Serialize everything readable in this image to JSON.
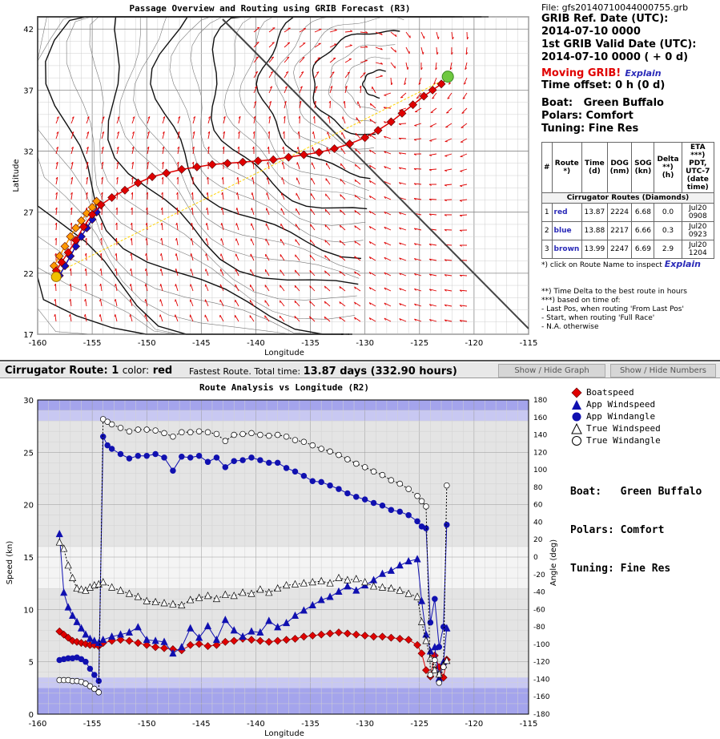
{
  "top_chart": {
    "title": "Passage Overview and Routing using GRIB Forecast (R3)",
    "xlabel": "Longitude",
    "ylabel": "Latitude",
    "x_ticks": [
      "-160",
      "-155",
      "-150",
      "-145",
      "-140",
      "-135",
      "-130",
      "-125",
      "-120",
      "-115"
    ],
    "y_ticks": [
      "42",
      "37",
      "32",
      "27",
      "22",
      "17"
    ]
  },
  "info": {
    "file": "File: gfs20140710044000755.grb",
    "grib_ref_label": "GRIB Ref. Date (UTC):",
    "grib_ref_value": "2014-07-10 0000",
    "first_valid_label": "1st GRIB Valid Date (UTC):",
    "first_valid_value": "2014-07-10 0000 ( + 0 d)",
    "moving": "Moving GRIB!",
    "explain": "Explain",
    "time_offset": "Time offset: 0 h (0 d)",
    "boat": "Boat:   Green Buffalo",
    "polars": "Polars: Comfort",
    "tuning": "Tuning: Fine Res"
  },
  "routes_table": {
    "headers": [
      "#",
      "Route *)",
      "Time (d)",
      "DOG (nm)",
      "SOG (kn)",
      "Delta **) (h)",
      "ETA ***) PDT, UTC-7 (date time)"
    ],
    "subheader": "Cirrugator Routes (Diamonds)",
    "rows": [
      {
        "num": "1",
        "route": "red",
        "color": "#2a2ab8",
        "time": "13.87",
        "dog": "2224",
        "sog": "6.68",
        "delta": "0.0",
        "eta": "Jul20 0908"
      },
      {
        "num": "2",
        "route": "blue",
        "color": "#2a2ab8",
        "time": "13.88",
        "dog": "2217",
        "sog": "6.66",
        "delta": "0.3",
        "eta": "Jul20 0923"
      },
      {
        "num": "3",
        "route": "brown",
        "color": "#2a2ab8",
        "time": "13.99",
        "dog": "2247",
        "sog": "6.69",
        "delta": "2.9",
        "eta": "Jul20 1204"
      }
    ],
    "click_note": "*) click on Route Name to inspect",
    "explain": "Explain"
  },
  "notes": [
    "**) Time Delta to the best route in hours",
    "***) based on time of:",
    "- Last Pos, when routing 'From Last Pos'",
    "- Start, when routing 'Full Race'",
    "- N.A. otherwise"
  ],
  "route_bar": {
    "label": "Cirrugator Route:",
    "num": "1",
    "color_label": "color:",
    "color": "red",
    "fastest": "Fastest Route. Total time:",
    "total": "13.87 days (332.90 hours)",
    "btn_graph": "Show / Hide Graph",
    "btn_numbers": "Show / Hide Numbers"
  },
  "legend": [
    {
      "label": "Boatspeed",
      "shape": "diamond",
      "color": "#e00000"
    },
    {
      "label": "App Windspeed",
      "shape": "triangle",
      "color": "#1010b0"
    },
    {
      "label": "App Windangle",
      "shape": "circle",
      "color": "#1010b0"
    },
    {
      "label": "True Windspeed",
      "shape": "triangle-open",
      "color": "#ffffff"
    },
    {
      "label": "True Windangle",
      "shape": "circle-open",
      "color": "#ffffff"
    }
  ],
  "boat_info": {
    "boat": "Boat:   Green Buffalo",
    "polars": "Polars: Comfort",
    "tuning": "Tuning: Fine Res"
  },
  "chart_data": [
    {
      "type": "scatter",
      "title": "Passage Overview and Routing using GRIB Forecast (R3)",
      "xlabel": "Longitude",
      "ylabel": "Latitude",
      "xlim": [
        -160,
        -115
      ],
      "ylim": [
        17,
        43
      ],
      "series": [
        {
          "name": "red",
          "color": "#e00000",
          "x": [
            -158.3,
            -157.8,
            -157.2,
            -156.5,
            -155.8,
            -155.0,
            -154.2,
            -153.2,
            -152.0,
            -150.8,
            -149.5,
            -148.2,
            -146.8,
            -145.4,
            -144.0,
            -142.6,
            -141.2,
            -139.8,
            -138.4,
            -137.0,
            -135.6,
            -134.2,
            -132.8,
            -131.4,
            -130.0,
            -128.8,
            -127.6,
            -126.6,
            -125.6,
            -124.6,
            -123.8,
            -123.0,
            -122.4
          ],
          "y": [
            22.2,
            22.9,
            23.7,
            24.7,
            25.8,
            26.8,
            27.6,
            28.2,
            28.8,
            29.4,
            29.9,
            30.2,
            30.5,
            30.7,
            30.9,
            31.0,
            31.1,
            31.2,
            31.3,
            31.5,
            31.7,
            31.9,
            32.2,
            32.6,
            33.1,
            33.7,
            34.4,
            35.1,
            35.8,
            36.5,
            37.0,
            37.5,
            38.0
          ]
        },
        {
          "name": "blue",
          "color": "#1010c0",
          "x": [
            -158.0,
            -157.5,
            -157.0,
            -156.5,
            -156.0,
            -155.5,
            -155.0,
            -154.6,
            -154.2
          ],
          "y": [
            21.8,
            22.6,
            23.4,
            24.2,
            25.0,
            25.7,
            26.4,
            27.0,
            27.6
          ]
        },
        {
          "name": "brown",
          "color": "#ff9900",
          "x": [
            -158.5,
            -158.0,
            -157.5,
            -157.0,
            -156.5,
            -156.0,
            -155.5,
            -155.0,
            -154.6
          ],
          "y": [
            22.6,
            23.4,
            24.2,
            25.0,
            25.7,
            26.3,
            26.9,
            27.4,
            27.9
          ]
        }
      ]
    },
    {
      "type": "line",
      "title": "Route Analysis vs Longitude (R2)",
      "xlabel": "Longitude",
      "ylabel": "Speed (kn)",
      "y2label": "Angle (deg)",
      "xlim": [
        -160,
        -115
      ],
      "ylim": [
        0,
        30
      ],
      "y2lim": [
        -180,
        180
      ],
      "x_ticks": [
        "-160",
        "-155",
        "-150",
        "-145",
        "-140",
        "-135",
        "-130",
        "-125",
        "-120",
        "-115"
      ],
      "y_ticks": [
        "0",
        "5",
        "10",
        "15",
        "20",
        "25",
        "30"
      ],
      "y2_ticks": [
        "-180",
        "-160",
        "-140",
        "-120",
        "-100",
        "-80",
        "-60",
        "-40",
        "-20",
        "0",
        "20",
        "40",
        "60",
        "80",
        "100",
        "120",
        "140",
        "160",
        "180"
      ],
      "series": [
        {
          "name": "Boatspeed",
          "axis": "left",
          "x": [
            -158.0,
            -157.6,
            -157.2,
            -156.8,
            -156.4,
            -156.0,
            -155.6,
            -155.2,
            -154.8,
            -154.4,
            -154.0,
            -153.2,
            -152.4,
            -151.6,
            -150.8,
            -150.0,
            -149.2,
            -148.4,
            -147.6,
            -146.8,
            -146.0,
            -145.2,
            -144.4,
            -143.6,
            -142.8,
            -142.0,
            -141.2,
            -140.4,
            -139.6,
            -138.8,
            -138.0,
            -137.2,
            -136.4,
            -135.6,
            -134.8,
            -134.0,
            -133.2,
            -132.4,
            -131.6,
            -130.8,
            -130.0,
            -129.2,
            -128.4,
            -127.6,
            -126.8,
            -126.0,
            -125.2,
            -124.8,
            -124.4,
            -124.0,
            -123.6,
            -123.2,
            -122.8,
            -122.5
          ],
          "y": [
            7.9,
            7.6,
            7.3,
            7.0,
            6.9,
            6.8,
            6.7,
            6.6,
            6.6,
            6.5,
            6.8,
            7.0,
            7.1,
            7.0,
            6.8,
            6.6,
            6.4,
            6.3,
            6.2,
            6.1,
            6.6,
            6.7,
            6.5,
            6.6,
            6.9,
            7.0,
            7.2,
            7.1,
            7.0,
            6.9,
            7.0,
            7.1,
            7.2,
            7.4,
            7.5,
            7.6,
            7.7,
            7.8,
            7.7,
            7.6,
            7.5,
            7.4,
            7.4,
            7.3,
            7.2,
            7.1,
            6.6,
            5.8,
            4.2,
            3.6,
            5.6,
            4.5,
            3.5,
            5.2
          ]
        },
        {
          "name": "App Windspeed",
          "axis": "left",
          "x": [
            -158.0,
            -157.6,
            -157.2,
            -156.8,
            -156.4,
            -156.0,
            -155.6,
            -155.2,
            -154.8,
            -154.4,
            -154.0,
            -153.2,
            -152.4,
            -151.6,
            -150.8,
            -150.0,
            -149.2,
            -148.4,
            -147.6,
            -146.8,
            -146.0,
            -145.2,
            -144.4,
            -143.6,
            -142.8,
            -142.0,
            -141.2,
            -140.4,
            -139.6,
            -138.8,
            -138.0,
            -137.2,
            -136.4,
            -135.6,
            -134.8,
            -134.0,
            -133.2,
            -132.4,
            -131.6,
            -130.8,
            -130.0,
            -129.2,
            -128.4,
            -127.6,
            -126.8,
            -126.0,
            -125.2,
            -124.8,
            -124.4,
            -124.0,
            -123.6,
            -123.2,
            -122.8,
            -122.5
          ],
          "y": [
            17.2,
            11.6,
            10.2,
            9.4,
            8.8,
            8.2,
            7.6,
            7.2,
            7.0,
            6.8,
            7.1,
            7.4,
            7.6,
            7.8,
            8.3,
            7.1,
            7.0,
            6.9,
            5.8,
            6.4,
            8.2,
            7.3,
            8.4,
            7.1,
            9.0,
            8.0,
            7.4,
            7.9,
            7.8,
            8.9,
            8.3,
            8.7,
            9.4,
            9.9,
            10.4,
            10.9,
            11.2,
            11.7,
            12.2,
            11.8,
            12.3,
            12.8,
            13.4,
            13.7,
            14.2,
            14.6,
            14.8,
            10.8,
            7.6,
            6.0,
            6.4,
            3.4,
            5.0,
            8.2
          ]
        },
        {
          "name": "App Windangle",
          "axis": "right",
          "x": [
            -158.0,
            -157.6,
            -157.2,
            -156.8,
            -156.4,
            -156.0,
            -155.6,
            -155.2,
            -154.8,
            -154.4,
            -154.0,
            -153.6,
            -153.2,
            -152.4,
            -151.6,
            -150.8,
            -150.0,
            -149.2,
            -148.4,
            -147.6,
            -146.8,
            -146.0,
            -145.2,
            -144.4,
            -143.6,
            -142.8,
            -142.0,
            -141.2,
            -140.4,
            -139.6,
            -138.8,
            -138.0,
            -137.2,
            -136.4,
            -135.6,
            -134.8,
            -134.0,
            -133.2,
            -132.4,
            -131.6,
            -130.8,
            -130.0,
            -129.2,
            -128.4,
            -127.6,
            -126.8,
            -126.0,
            -125.2,
            -124.8,
            -124.4,
            -124.0,
            -123.6,
            -123.2,
            -122.8,
            -122.5
          ],
          "y": [
            -118,
            -117,
            -116,
            -116,
            -115,
            -117,
            -120,
            -128,
            -135,
            -142,
            138,
            128,
            124,
            118,
            113,
            116,
            116,
            118,
            114,
            99,
            115,
            114,
            116,
            109,
            114,
            103,
            110,
            111,
            114,
            111,
            108,
            108,
            102,
            98,
            93,
            87,
            86,
            82,
            78,
            73,
            69,
            66,
            62,
            59,
            54,
            52,
            48,
            41,
            35,
            33,
            -75,
            -48,
            -103,
            -80,
            37
          ]
        },
        {
          "name": "True Windspeed",
          "axis": "left",
          "x": [
            -158.0,
            -157.6,
            -157.2,
            -156.8,
            -156.4,
            -156.0,
            -155.6,
            -155.2,
            -154.8,
            -154.4,
            -154.0,
            -153.2,
            -152.4,
            -151.6,
            -150.8,
            -150.0,
            -149.2,
            -148.4,
            -147.6,
            -146.8,
            -146.0,
            -145.2,
            -144.4,
            -143.6,
            -142.8,
            -142.0,
            -141.2,
            -140.4,
            -139.6,
            -138.8,
            -138.0,
            -137.2,
            -136.4,
            -135.6,
            -134.8,
            -134.0,
            -133.2,
            -132.4,
            -131.6,
            -130.8,
            -130.0,
            -129.2,
            -128.4,
            -127.6,
            -126.8,
            -126.0,
            -125.2,
            -124.8,
            -124.4,
            -124.0,
            -123.6,
            -123.2,
            -122.8,
            -122.5
          ],
          "y": [
            16.4,
            15.8,
            14.2,
            13.0,
            12.0,
            11.9,
            11.8,
            12.1,
            12.3,
            12.4,
            12.6,
            12.1,
            11.8,
            11.5,
            11.2,
            10.8,
            10.7,
            10.6,
            10.5,
            10.4,
            10.9,
            11.1,
            11.3,
            11.0,
            11.4,
            11.3,
            11.6,
            11.5,
            11.9,
            11.6,
            12.0,
            12.3,
            12.4,
            12.5,
            12.6,
            12.7,
            12.5,
            13.0,
            12.8,
            12.9,
            12.6,
            12.2,
            12.1,
            12.0,
            11.8,
            11.5,
            11.2,
            8.8,
            7.0,
            5.3,
            4.2,
            3.8,
            4.7,
            5.1
          ]
        },
        {
          "name": "True Windangle",
          "axis": "right",
          "x": [
            -158.0,
            -157.6,
            -157.2,
            -156.8,
            -156.4,
            -156.0,
            -155.6,
            -155.2,
            -154.8,
            -154.4,
            -154.0,
            -153.6,
            -153.2,
            -152.4,
            -151.6,
            -150.8,
            -150.0,
            -149.2,
            -148.4,
            -147.6,
            -146.8,
            -146.0,
            -145.2,
            -144.4,
            -143.6,
            -142.8,
            -142.0,
            -141.2,
            -140.4,
            -139.6,
            -138.8,
            -138.0,
            -137.2,
            -136.4,
            -135.6,
            -134.8,
            -134.0,
            -133.2,
            -132.4,
            -131.6,
            -130.8,
            -130.0,
            -129.2,
            -128.4,
            -127.6,
            -126.8,
            -126.0,
            -125.2,
            -124.8,
            -124.4,
            -124.0,
            -123.6,
            -123.2,
            -122.8,
            -122.5
          ],
          "y": [
            -141,
            -141,
            -141,
            -142,
            -142,
            -143,
            -145,
            -148,
            -151,
            -155,
            158,
            155,
            152,
            148,
            144,
            146,
            146,
            145,
            142,
            138,
            143,
            143,
            144,
            143,
            141,
            133,
            140,
            141,
            142,
            140,
            139,
            140,
            138,
            134,
            132,
            128,
            124,
            121,
            117,
            112,
            107,
            103,
            98,
            94,
            88,
            84,
            78,
            70,
            64,
            58,
            -135,
            -118,
            -144,
            -126,
            82
          ]
        }
      ]
    }
  ]
}
